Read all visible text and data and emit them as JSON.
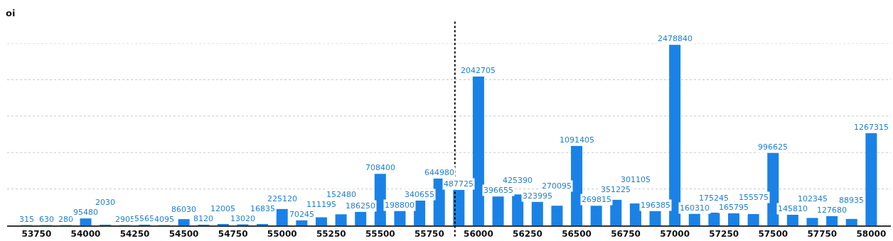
{
  "chart_data": {
    "type": "bar",
    "ylabel": "oi",
    "x": [
      53700,
      53800,
      53900,
      54000,
      54100,
      54200,
      54300,
      54400,
      54500,
      54600,
      54700,
      54800,
      54900,
      55000,
      55100,
      55200,
      55300,
      55400,
      55500,
      55600,
      55700,
      55800,
      55900,
      56000,
      56100,
      56200,
      56300,
      56400,
      56500,
      56600,
      56700,
      56800,
      56900,
      57000,
      57100,
      57200,
      57300,
      57400,
      57500,
      57600,
      57700,
      57800,
      57900,
      58000
    ],
    "values": [
      315,
      630,
      280,
      95480,
      2030,
      2905,
      5565,
      4095,
      86030,
      8120,
      12005,
      13020,
      16835,
      225120,
      70245,
      111195,
      152480,
      186250,
      708400,
      198800,
      340655,
      644980,
      487725,
      2042705,
      396655,
      425390,
      323995,
      270095,
      1091405,
      269815,
      351225,
      301105,
      196385,
      2478840,
      160310,
      175245,
      165795,
      155575,
      996625,
      145810,
      102345,
      127680,
      88935,
      1267315
    ],
    "color": "#1a82e6",
    "data_labels": true,
    "xlim": [
      53600,
      58100
    ],
    "xticks": [
      53750,
      54000,
      54250,
      54500,
      54750,
      55000,
      55250,
      55500,
      55750,
      56000,
      56250,
      56500,
      56750,
      57000,
      57250,
      57500,
      57750,
      58000
    ],
    "ylim": [
      0,
      2500000
    ],
    "yticks": [
      {
        "value": 500000,
        "label": null
      },
      {
        "value": 1000000,
        "label": null
      },
      {
        "value": 1500000,
        "label": null
      },
      {
        "value": 2000000,
        "label": null
      },
      {
        "value": 2500000,
        "label": null
      }
    ],
    "grid": "y",
    "legend": false,
    "ref_lines": [
      {
        "axis": "x",
        "value": 55880,
        "line_style": "dotted",
        "color": "#000000"
      }
    ]
  }
}
